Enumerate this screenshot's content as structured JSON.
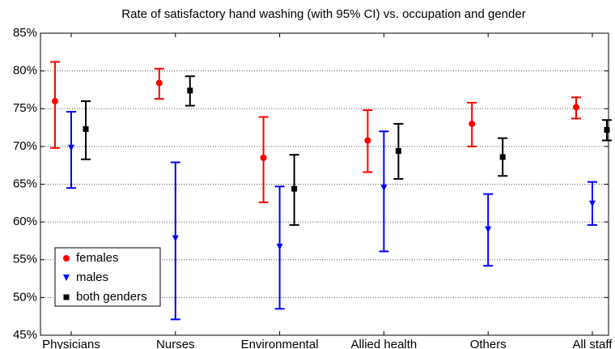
{
  "chart_data": {
    "type": "errorbar",
    "title": "Rate of satisfactory hand washing (with 95% CI) vs. occupation and gender",
    "categories": [
      "Physicians",
      "Nurses",
      "Environmental",
      "Allied health",
      "Others",
      "All staff"
    ],
    "series": [
      {
        "name": "females",
        "color": "#ff0000",
        "marker": "circle",
        "values": [
          76,
          78.4,
          68.5,
          70.8,
          73,
          75.2
        ],
        "lower": [
          69.8,
          76.3,
          62.6,
          66.6,
          70,
          73.7
        ],
        "upper": [
          81.2,
          80.3,
          73.9,
          74.8,
          75.8,
          76.5
        ]
      },
      {
        "name": "males",
        "color": "#0000ff",
        "marker": "triangle-down",
        "values": [
          69.8,
          57.8,
          56.7,
          64.5,
          59,
          62.4
        ],
        "lower": [
          64.5,
          47.1,
          48.5,
          56.1,
          54.2,
          59.6
        ],
        "upper": [
          74.6,
          67.9,
          64.7,
          72,
          63.7,
          65.3
        ]
      },
      {
        "name": "both genders",
        "color": "#000000",
        "marker": "square",
        "values": [
          72.3,
          77.4,
          64.4,
          69.4,
          68.6,
          72.2
        ],
        "lower": [
          68.3,
          75.4,
          59.6,
          65.7,
          66.1,
          70.8
        ],
        "upper": [
          76,
          79.3,
          68.9,
          73,
          71.1,
          73.5
        ]
      }
    ],
    "ylim": [
      45,
      85
    ],
    "yticks": [
      {
        "value": 45,
        "label": "45%"
      },
      {
        "value": 50,
        "label": "50%"
      },
      {
        "value": 55,
        "label": "55%"
      },
      {
        "value": 60,
        "label": "60%"
      },
      {
        "value": 65,
        "label": "65%"
      },
      {
        "value": 70,
        "label": "70%"
      },
      {
        "value": 75,
        "label": "75%"
      },
      {
        "value": 80,
        "label": "80%"
      },
      {
        "value": 85,
        "label": "85%"
      }
    ],
    "grid": true,
    "legend": "lower left"
  }
}
